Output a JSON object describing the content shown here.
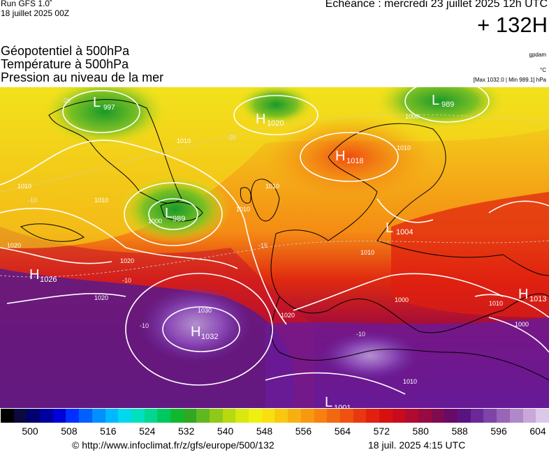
{
  "header": {
    "run": "Run GFS 1.0˚",
    "run_date": "18 juillet 2025 00Z",
    "forecast": "Echéance : mercredi 23 juillet 2025 12h UTC",
    "hour": "+ 132H"
  },
  "variables": [
    {
      "name": "Géopotentiel à 500hPa",
      "unit": "gpdam"
    },
    {
      "name": "Température à 500hPa",
      "unit": "°C"
    },
    {
      "name": "Pression au niveau de la mer",
      "unit": "[Max 1032.0 | Min 989.1] hPa"
    }
  ],
  "map": {
    "pressure_centers": [
      {
        "type": "L",
        "value": "997"
      },
      {
        "type": "H",
        "value": "1020"
      },
      {
        "type": "L",
        "value": "989"
      },
      {
        "type": "H",
        "value": "1018"
      },
      {
        "type": "L",
        "value": "989"
      },
      {
        "type": "L",
        "value": "1004"
      },
      {
        "type": "H",
        "value": "1026"
      },
      {
        "type": "H",
        "value": "1032"
      },
      {
        "type": "H",
        "value": "1013"
      },
      {
        "type": "L",
        "value": "1001"
      }
    ],
    "isobar_labels": [
      "1010",
      "1010",
      "1010",
      "1000",
      "1000",
      "1010",
      "1020",
      "1020",
      "1020",
      "1030",
      "1020",
      "1010",
      "1000",
      "1010",
      "1000",
      "1010",
      "1010",
      "1010"
    ],
    "temp_labels": [
      "-20",
      "-20",
      "-10",
      "-15",
      "-10",
      "-10",
      "-10"
    ],
    "colors": {
      "purple_high": "#7a2aa8",
      "red": "#d81414",
      "orange": "#f58c14",
      "yellow": "#f2e21c",
      "green": "#2aa62a",
      "isobar": "#ffffff",
      "coast": "#000000"
    }
  },
  "colorbar": {
    "colors": [
      "#000000",
      "#0a0a40",
      "#00006e",
      "#0000a0",
      "#0000d8",
      "#0030ff",
      "#0060ff",
      "#0090ff",
      "#00b8ff",
      "#00d8f0",
      "#00e0c0",
      "#00d890",
      "#00c860",
      "#10b830",
      "#30a820",
      "#60b820",
      "#90c818",
      "#b8d810",
      "#d8e810",
      "#f0f010",
      "#f8e010",
      "#f8c810",
      "#f8b010",
      "#f89810",
      "#f88010",
      "#f06810",
      "#f05010",
      "#e83810",
      "#e02010",
      "#d81010",
      "#c80a1e",
      "#b00a30",
      "#980a40",
      "#800a50",
      "#6a0a68",
      "#5a1480",
      "#6a2898",
      "#7e44a8",
      "#9a64b8",
      "#b088c8",
      "#c8a8d8",
      "#dcc8e8"
    ],
    "ticks": [
      "500",
      "508",
      "516",
      "524",
      "532",
      "540",
      "548",
      "556",
      "564",
      "572",
      "580",
      "588",
      "596",
      "604"
    ]
  },
  "footer": {
    "copyright": "© http://www.infoclimat.fr/z/gfs/europe/500/132",
    "generated": "18 juil. 2025  4:15 UTC"
  }
}
